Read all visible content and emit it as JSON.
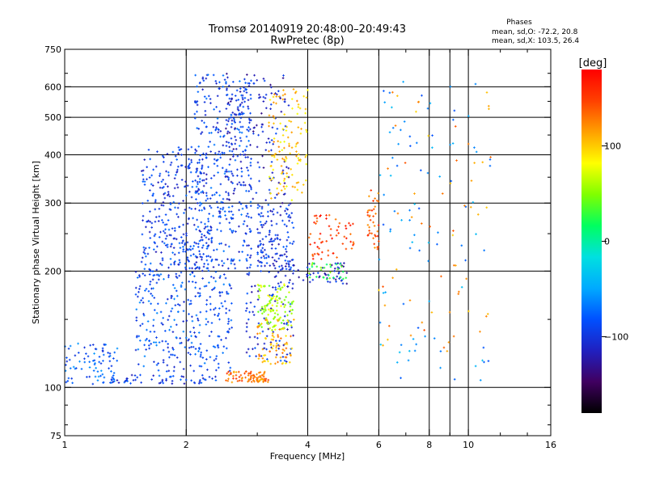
{
  "chart_data": {
    "type": "scatter",
    "title": "Tromsø 20140919 20:48:00–20:49:43",
    "subtitle": "RwPretec (8p)",
    "xlabel": "Frequency [MHz]",
    "ylabel": "Stationary phase Virtual Height [km]",
    "x_scale": "log",
    "y_scale": "log",
    "xlim": [
      1,
      16
    ],
    "ylim": [
      75,
      750
    ],
    "x_ticks": [
      1,
      2,
      4,
      6,
      8,
      10,
      16
    ],
    "x_tick_labels": [
      "1",
      "2",
      "4",
      "6",
      "8",
      "10",
      "16"
    ],
    "x_minor_ticks": [
      3,
      5,
      7,
      9,
      12,
      14
    ],
    "x_grid_lines": [
      2,
      4,
      6,
      8,
      9,
      10
    ],
    "y_ticks": [
      75,
      100,
      200,
      300,
      400,
      500,
      600,
      750
    ],
    "y_tick_labels": [
      "75",
      "100",
      "200",
      "300",
      "400",
      "500",
      "600",
      "750"
    ],
    "y_grid_lines": [
      100,
      200,
      300,
      400,
      500,
      600
    ],
    "grid": true,
    "legend": {
      "title": "Phases",
      "line1": "mean, sd,O: -72.2, 20.8",
      "line2": "mean, sd,X: 103.5, 26.4",
      "placement": "top-right"
    },
    "colorbar": {
      "label": "[deg]",
      "min": -180,
      "max": 180,
      "ticks": [
        -100,
        0,
        100
      ],
      "tick_labels": [
        "−100",
        "0",
        "100"
      ],
      "colors": [
        "#000000",
        "#400060",
        "#2020c0",
        "#0050ff",
        "#00aaff",
        "#00e0e0",
        "#00ff60",
        "#80ff00",
        "#ffff00",
        "#ffa000",
        "#ff4000",
        "#ff0000"
      ]
    },
    "clusters": [
      {
        "name": "O",
        "phase": -80,
        "x": [
          1.0,
          1.35
        ],
        "y": [
          102,
          130
        ],
        "n": 80
      },
      {
        "name": "O",
        "phase": -95,
        "x": [
          1.3,
          2.4
        ],
        "y": [
          102,
          108
        ],
        "n": 60
      },
      {
        "name": "O",
        "phase": -85,
        "x": [
          1.5,
          2.6
        ],
        "y": [
          110,
          200
        ],
        "n": 300
      },
      {
        "name": "O",
        "phase": -95,
        "x": [
          1.55,
          2.3
        ],
        "y": [
          200,
          420
        ],
        "n": 320
      },
      {
        "name": "O",
        "phase": -90,
        "x": [
          2.1,
          2.9
        ],
        "y": [
          200,
          650
        ],
        "n": 380
      },
      {
        "name": "O",
        "phase": -110,
        "x": [
          2.5,
          3.6
        ],
        "y": [
          300,
          650
        ],
        "n": 160
      },
      {
        "name": "O",
        "phase": -100,
        "x": [
          3.0,
          3.7
        ],
        "y": [
          200,
          300
        ],
        "n": 140
      },
      {
        "name": "O",
        "phase": -110,
        "x": [
          3.4,
          5.0
        ],
        "y": [
          185,
          210
        ],
        "n": 60
      },
      {
        "name": "O",
        "phase": -100,
        "x": [
          2.8,
          3.7
        ],
        "y": [
          115,
          200
        ],
        "n": 100
      },
      {
        "name": "X",
        "phase": 60,
        "x": [
          3.0,
          3.7
        ],
        "y": [
          140,
          185
        ],
        "n": 110
      },
      {
        "name": "X",
        "phase": 130,
        "x": [
          2.5,
          3.2
        ],
        "y": [
          103,
          110
        ],
        "n": 80
      },
      {
        "name": "X",
        "phase": 110,
        "x": [
          3.0,
          3.7
        ],
        "y": [
          115,
          150
        ],
        "n": 70
      },
      {
        "name": "X",
        "phase": 100,
        "x": [
          3.2,
          4.0
        ],
        "y": [
          300,
          600
        ],
        "n": 120
      },
      {
        "name": "X",
        "phase": 150,
        "x": [
          4.0,
          5.2
        ],
        "y": [
          215,
          280
        ],
        "n": 60
      },
      {
        "name": "X",
        "phase": 140,
        "x": [
          5.6,
          6.0
        ],
        "y": [
          225,
          330
        ],
        "n": 40
      },
      {
        "name": "X",
        "phase": 30,
        "x": [
          4.0,
          5.0
        ],
        "y": [
          190,
          210
        ],
        "n": 30
      },
      {
        "name": "O",
        "phase": -60,
        "x": [
          6.0,
          11.5
        ],
        "y": [
          100,
          620
        ],
        "n": 90
      },
      {
        "name": "X",
        "phase": 120,
        "x": [
          6.0,
          11.5
        ],
        "y": [
          110,
          600
        ],
        "n": 60
      }
    ]
  }
}
